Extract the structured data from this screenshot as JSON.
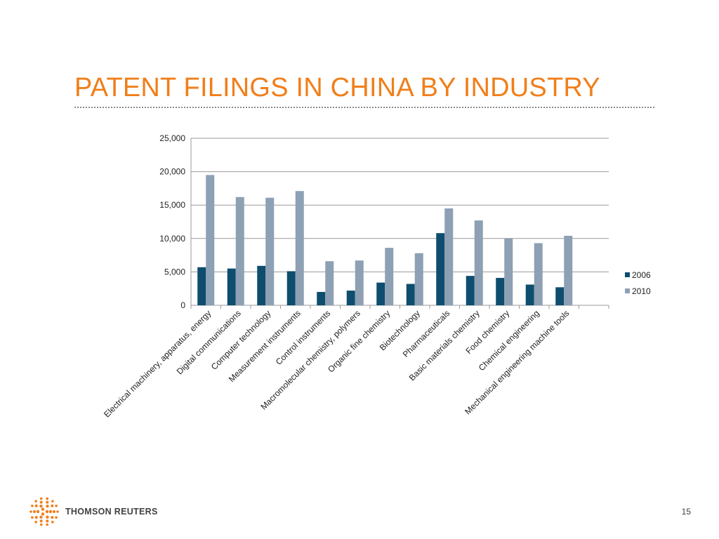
{
  "slide": {
    "title": "PATENT FILINGS IN CHINA BY INDUSTRY",
    "brand": "THOMSON REUTERS",
    "page_number": "15",
    "accent_color": "#f07f1b"
  },
  "chart_data": {
    "type": "bar",
    "title": "",
    "xlabel": "",
    "ylabel": "",
    "ylim": [
      0,
      25000
    ],
    "yticks": [
      "0",
      "5,000",
      "10,000",
      "15,000",
      "20,000",
      "25,000"
    ],
    "grid": true,
    "legend_position": "right",
    "categories": [
      "Electrical machinery, apparatus, energy",
      "Digital communications",
      "Computer technology",
      "Measurement instruments",
      "Control instruments",
      "Macromolecular chemistry, polymers",
      "Organic fine chemistry",
      "Biotechnology",
      "Pharmaceuticals",
      "Basic materials chemistry",
      "Food chemistry",
      "Chemical engineering",
      "Mechanical engineering machine tools"
    ],
    "series": [
      {
        "name": "2006",
        "color": "#0e4d6e",
        "values": [
          5700,
          5500,
          5900,
          5100,
          2000,
          2200,
          3400,
          3200,
          10800,
          4400,
          4100,
          3100,
          2700
        ]
      },
      {
        "name": "2010",
        "color": "#8da0b4",
        "values": [
          19500,
          16200,
          16100,
          17100,
          6600,
          6700,
          8600,
          7800,
          14500,
          12700,
          10000,
          9300,
          10400
        ]
      }
    ]
  }
}
